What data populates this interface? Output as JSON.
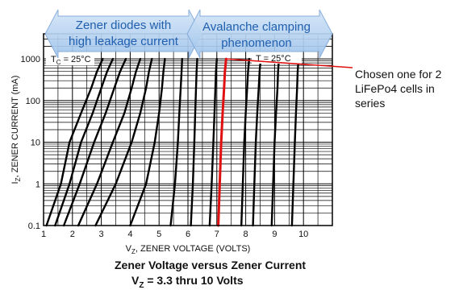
{
  "chart_data": {
    "type": "line",
    "x_axis": {
      "label_main": "V",
      "label_sub": "Z",
      "label_rest": ", ZENER VOLTAGE (VOLTS)",
      "ticks": [
        1,
        2,
        3,
        4,
        5,
        6,
        7,
        8,
        9,
        10
      ],
      "range": [
        1,
        11
      ],
      "scale": "linear"
    },
    "y_axis": {
      "label_main": "I",
      "label_sub": "Z",
      "label_rest": ", ZENER CURRENT (mA)",
      "ticks": [
        0.1,
        1,
        10,
        100,
        1000
      ],
      "tick_labels": [
        "0.1",
        "1",
        "10",
        "100",
        "1000"
      ],
      "range": [
        0.1,
        4000
      ],
      "scale": "log"
    },
    "grid": true,
    "annotations": {
      "tc": "T",
      "tc_sub": "C",
      "tc_value": " = 25°C",
      "t": "T = 25°C"
    },
    "series": [
      {
        "x": [
          1.1,
          1.6,
          1.9,
          2.3,
          2.65,
          2.85,
          3.05
        ],
        "y": [
          0.1,
          1,
          10,
          50,
          200,
          500,
          1000
        ],
        "color": "#000000"
      },
      {
        "x": [
          1.4,
          1.9,
          2.3,
          2.7,
          3.0,
          3.2,
          3.4
        ],
        "y": [
          0.1,
          1,
          10,
          50,
          200,
          500,
          1000
        ],
        "color": "#000000"
      },
      {
        "x": [
          1.7,
          2.25,
          2.75,
          3.15,
          3.45,
          3.65,
          3.85
        ],
        "y": [
          0.1,
          1,
          10,
          50,
          200,
          500,
          1000
        ],
        "color": "#000000"
      },
      {
        "x": [
          2.2,
          2.85,
          3.4,
          3.8,
          4.05,
          4.2,
          4.35
        ],
        "y": [
          0.1,
          1,
          10,
          50,
          200,
          500,
          1000
        ],
        "color": "#000000"
      },
      {
        "x": [
          2.8,
          3.5,
          4.05,
          4.35,
          4.55,
          4.65,
          4.75
        ],
        "y": [
          0.1,
          1,
          10,
          50,
          200,
          500,
          1000
        ],
        "color": "#000000"
      },
      {
        "x": [
          4.0,
          4.55,
          4.85,
          5.0,
          5.1,
          5.15,
          5.2
        ],
        "y": [
          0.1,
          1,
          10,
          50,
          200,
          500,
          1000
        ],
        "color": "#000000"
      },
      {
        "x": [
          5.4,
          5.55,
          5.65,
          5.7,
          5.75,
          5.78,
          5.8
        ],
        "y": [
          0.1,
          1,
          10,
          50,
          200,
          500,
          1000
        ],
        "color": "#000000"
      },
      {
        "x": [
          6.1,
          6.17,
          6.22,
          6.25,
          6.28,
          6.3,
          6.32
        ],
        "y": [
          0.1,
          1,
          10,
          50,
          200,
          500,
          1000
        ],
        "color": "#000000"
      },
      {
        "x": [
          6.75,
          6.82,
          6.88,
          6.92,
          6.95,
          6.97,
          7.0
        ],
        "y": [
          0.1,
          1,
          10,
          50,
          200,
          500,
          1000
        ],
        "color": "#000000"
      },
      {
        "x": [
          7.05,
          7.1,
          7.15,
          7.2,
          7.25,
          7.28,
          7.32
        ],
        "y": [
          0.1,
          1,
          10,
          50,
          200,
          500,
          1000
        ],
        "color": "#e01010"
      },
      {
        "x": [
          7.85,
          7.9,
          7.95,
          8.0,
          8.05,
          8.08,
          8.12
        ],
        "y": [
          0.1,
          1,
          10,
          50,
          200,
          500,
          1000
        ],
        "color": "#000000"
      },
      {
        "x": [
          8.25,
          8.3,
          8.35,
          8.4,
          8.45,
          8.48,
          8.52
        ],
        "y": [
          0.1,
          1,
          10,
          50,
          200,
          500,
          1000
        ],
        "color": "#000000"
      },
      {
        "x": [
          8.9,
          8.95,
          9.0,
          9.05,
          9.1,
          9.12,
          9.15
        ],
        "y": [
          0.1,
          1,
          10,
          50,
          200,
          500,
          1000
        ],
        "color": "#000000"
      },
      {
        "x": [
          9.6,
          9.65,
          9.7,
          9.74,
          9.78,
          9.8,
          9.83
        ],
        "y": [
          0.1,
          1,
          10,
          50,
          200,
          500,
          1000
        ],
        "color": "#000000"
      }
    ]
  },
  "overlay": {
    "banner_left": "Zener diodes with high leakage current",
    "banner_right": "Avalanche clamping phenomenon",
    "callout": "Chosen one for 2 LiFePo4 cells in series",
    "callout_target": {
      "x": 7.32,
      "y": 1000
    },
    "banner_fill": "#b6d1f0",
    "banner_text_color": "#1f5fae"
  },
  "caption": {
    "title": "Zener Voltage versus Zener Current",
    "subtitle_main": "V",
    "subtitle_sub": "Z",
    "subtitle_rest": " = 3.3 thru 10 Volts"
  }
}
